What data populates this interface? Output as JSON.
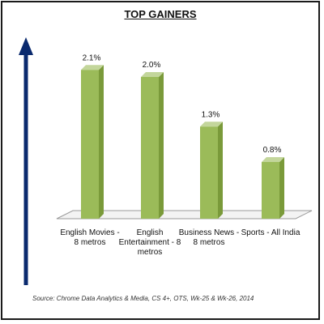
{
  "chart_data": {
    "type": "bar",
    "title": "TOP GAINERS",
    "categories": [
      "English Movies - 8 metros",
      "English Entertainment - 8 metros",
      "Business News - 8 metros",
      "Sports - All India"
    ],
    "values": [
      2.1,
      2.0,
      1.3,
      0.8
    ],
    "data_labels": [
      "2.1%",
      "2.0%",
      "1.3%",
      "0.8%"
    ],
    "ylim": [
      0,
      2.4
    ],
    "grid": false,
    "legend": "none",
    "bar_color": "#9bbb59",
    "bar_side_color": "#7a9a3a",
    "bar_top_color": "#c3d69b",
    "arrow_color": "#0a2a6e",
    "source": "Source: Chrome Data Analytics & Media, CS 4+, OTS, Wk-25 & Wk-26, 2014"
  }
}
